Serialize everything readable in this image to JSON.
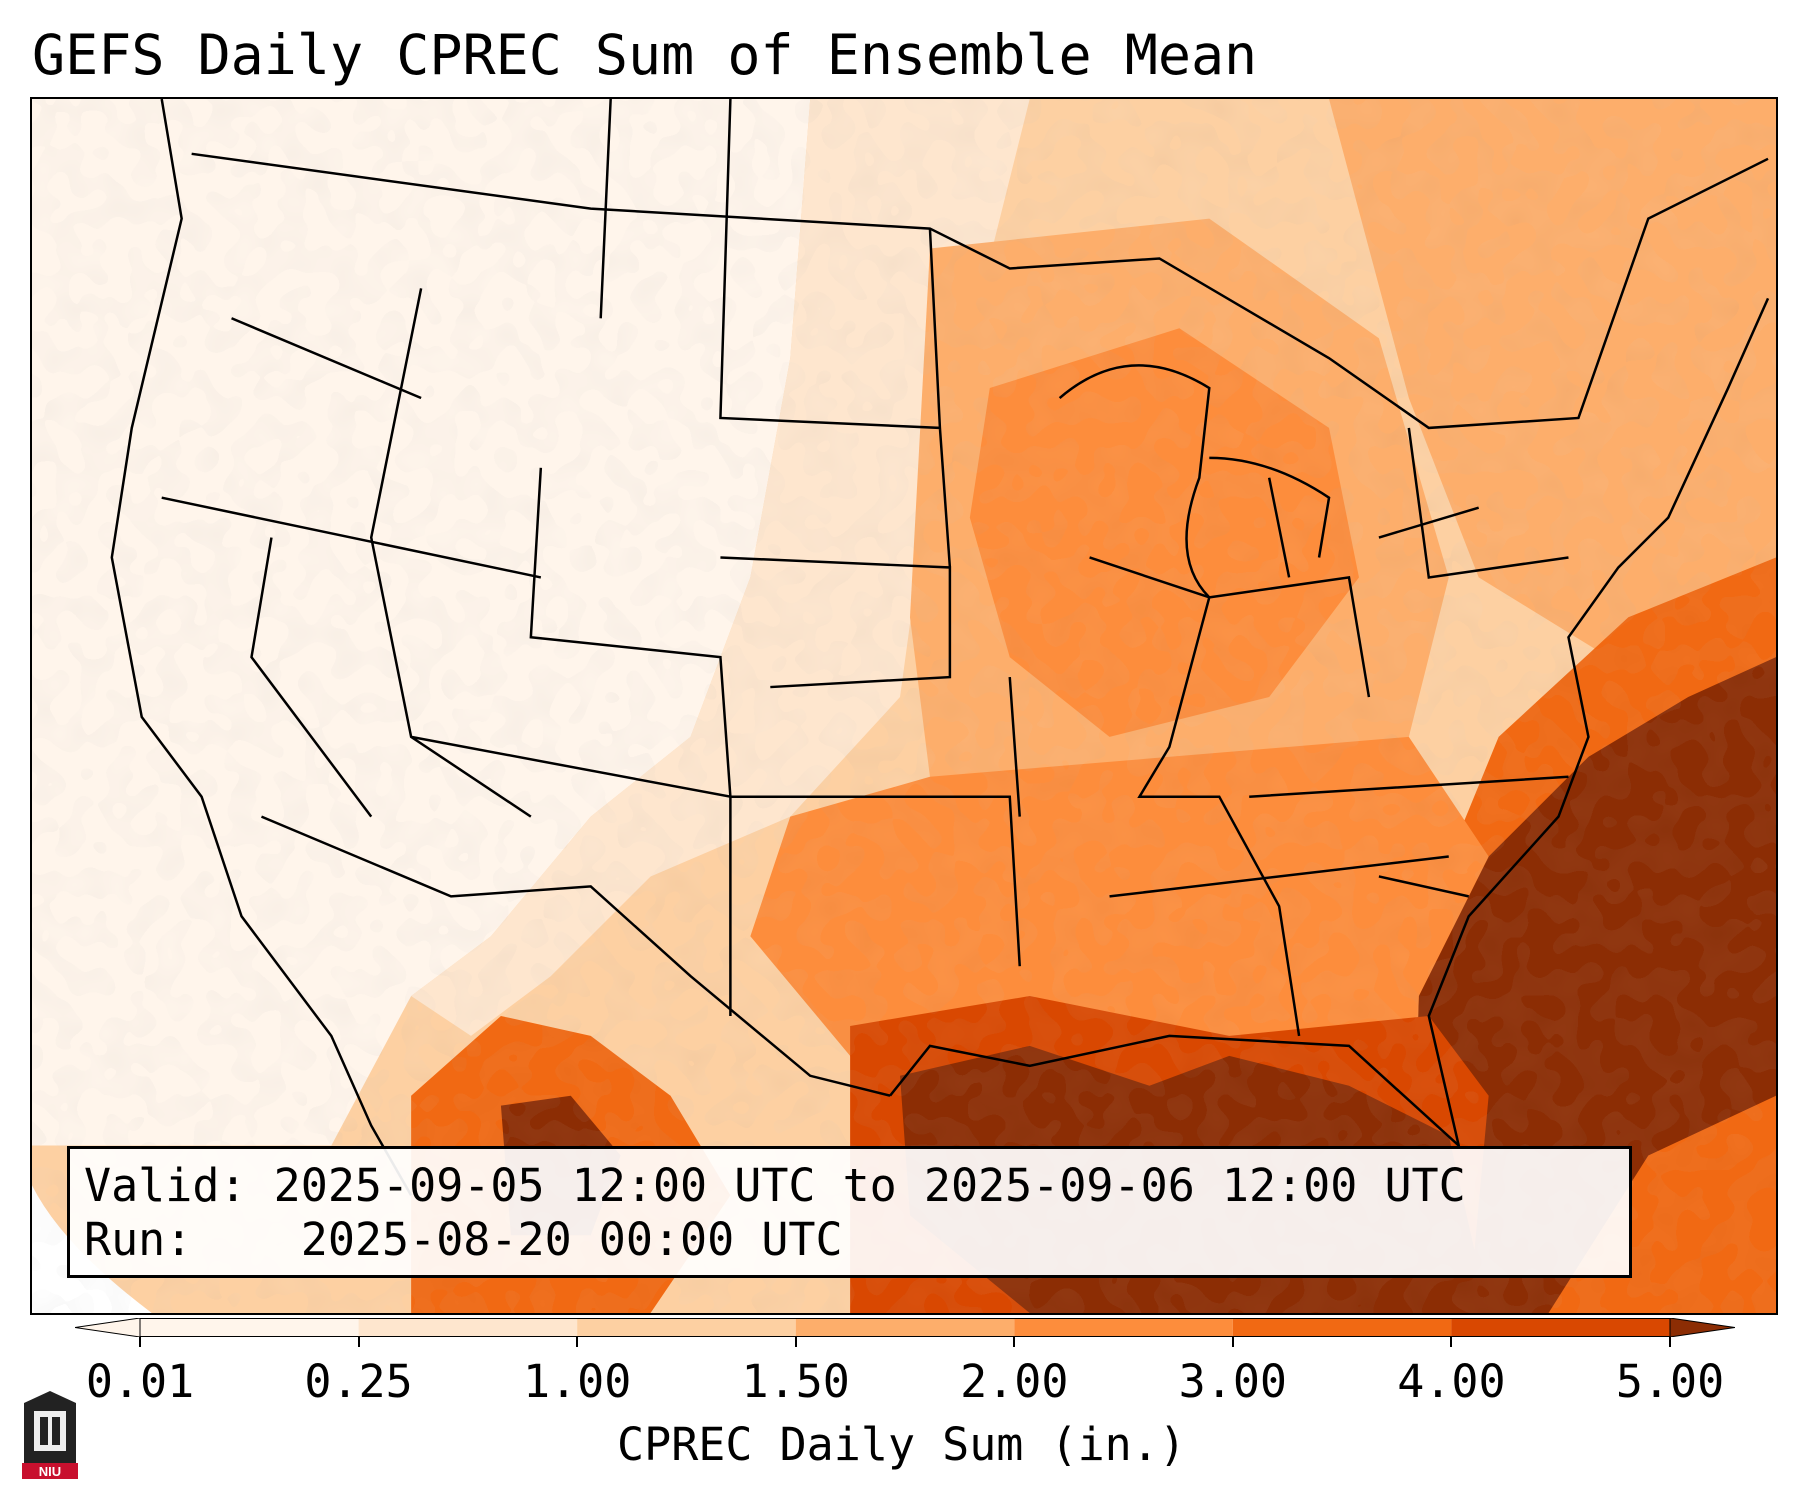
{
  "title": "GEFS Daily CPREC Sum of Ensemble Mean",
  "info": {
    "valid_label": "Valid:",
    "valid_value": "2025-09-05 12:00 UTC to 2025-09-06 12:00 UTC",
    "run_label": "Run:",
    "run_value": "2025-08-20 00:00 UTC"
  },
  "colorbar": {
    "label": "CPREC Daily Sum (in.)",
    "ticks": [
      "0.01",
      "0.25",
      "1.00",
      "1.50",
      "2.00",
      "3.00",
      "4.00",
      "5.00"
    ],
    "colors": [
      "#fff5eb",
      "#fee6ce",
      "#fdd0a2",
      "#fdae6b",
      "#fd8d3c",
      "#f16913",
      "#d94801",
      "#8c2d04"
    ],
    "extend": "both"
  },
  "map_region": "Contiguous United States with southern Canada, northern Mexico, Gulf of Mexico and western Atlantic",
  "logo": {
    "text": "NIU",
    "name": "niu-logo"
  }
}
